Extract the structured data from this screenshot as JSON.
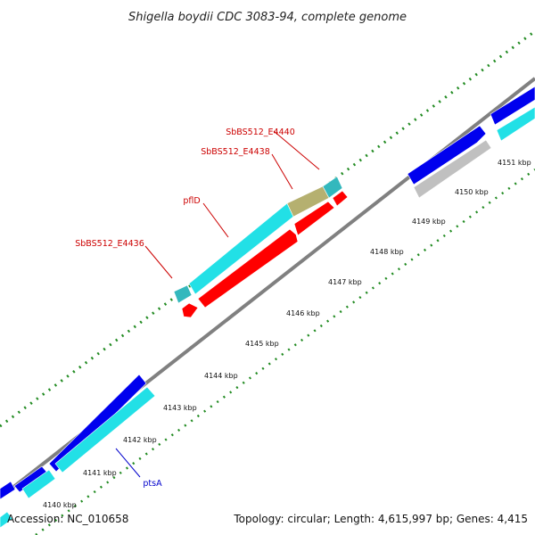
{
  "title": "Shigella boydii CDC 3083-94, complete genome",
  "footer": {
    "accession": "Accession: NC_010658",
    "summary": "Topology: circular; Length: 4,615,997 bp; Genes: 4,415"
  },
  "tick_labels": [
    "4140 kbp",
    "4141 kbp",
    "4142 kbp",
    "4143 kbp",
    "4144 kbp",
    "4145 kbp",
    "4146 kbp",
    "4147 kbp",
    "4148 kbp",
    "4149 kbp",
    "4150 kbp",
    "4151 kbp"
  ],
  "gene_labels": {
    "sbbs_e4440": "SbBS512_E4440",
    "sbbs_e4438": "SbBS512_E4438",
    "pfld": "pflD",
    "sbbs_e4436": "SbBS512_E4436",
    "ptsa": "ptsA"
  },
  "colors": {
    "backbone": "#808080",
    "tick": "#228b22",
    "gene_blue": "#0000ee",
    "gene_cyan": "#22e0e6",
    "gene_teal": "#33b8bd",
    "gene_red": "#ff0000",
    "gene_olive": "#b5b070",
    "gene_gray": "#c0c0c0",
    "label_red": "#cc0000",
    "label_blue": "#0000cc"
  }
}
